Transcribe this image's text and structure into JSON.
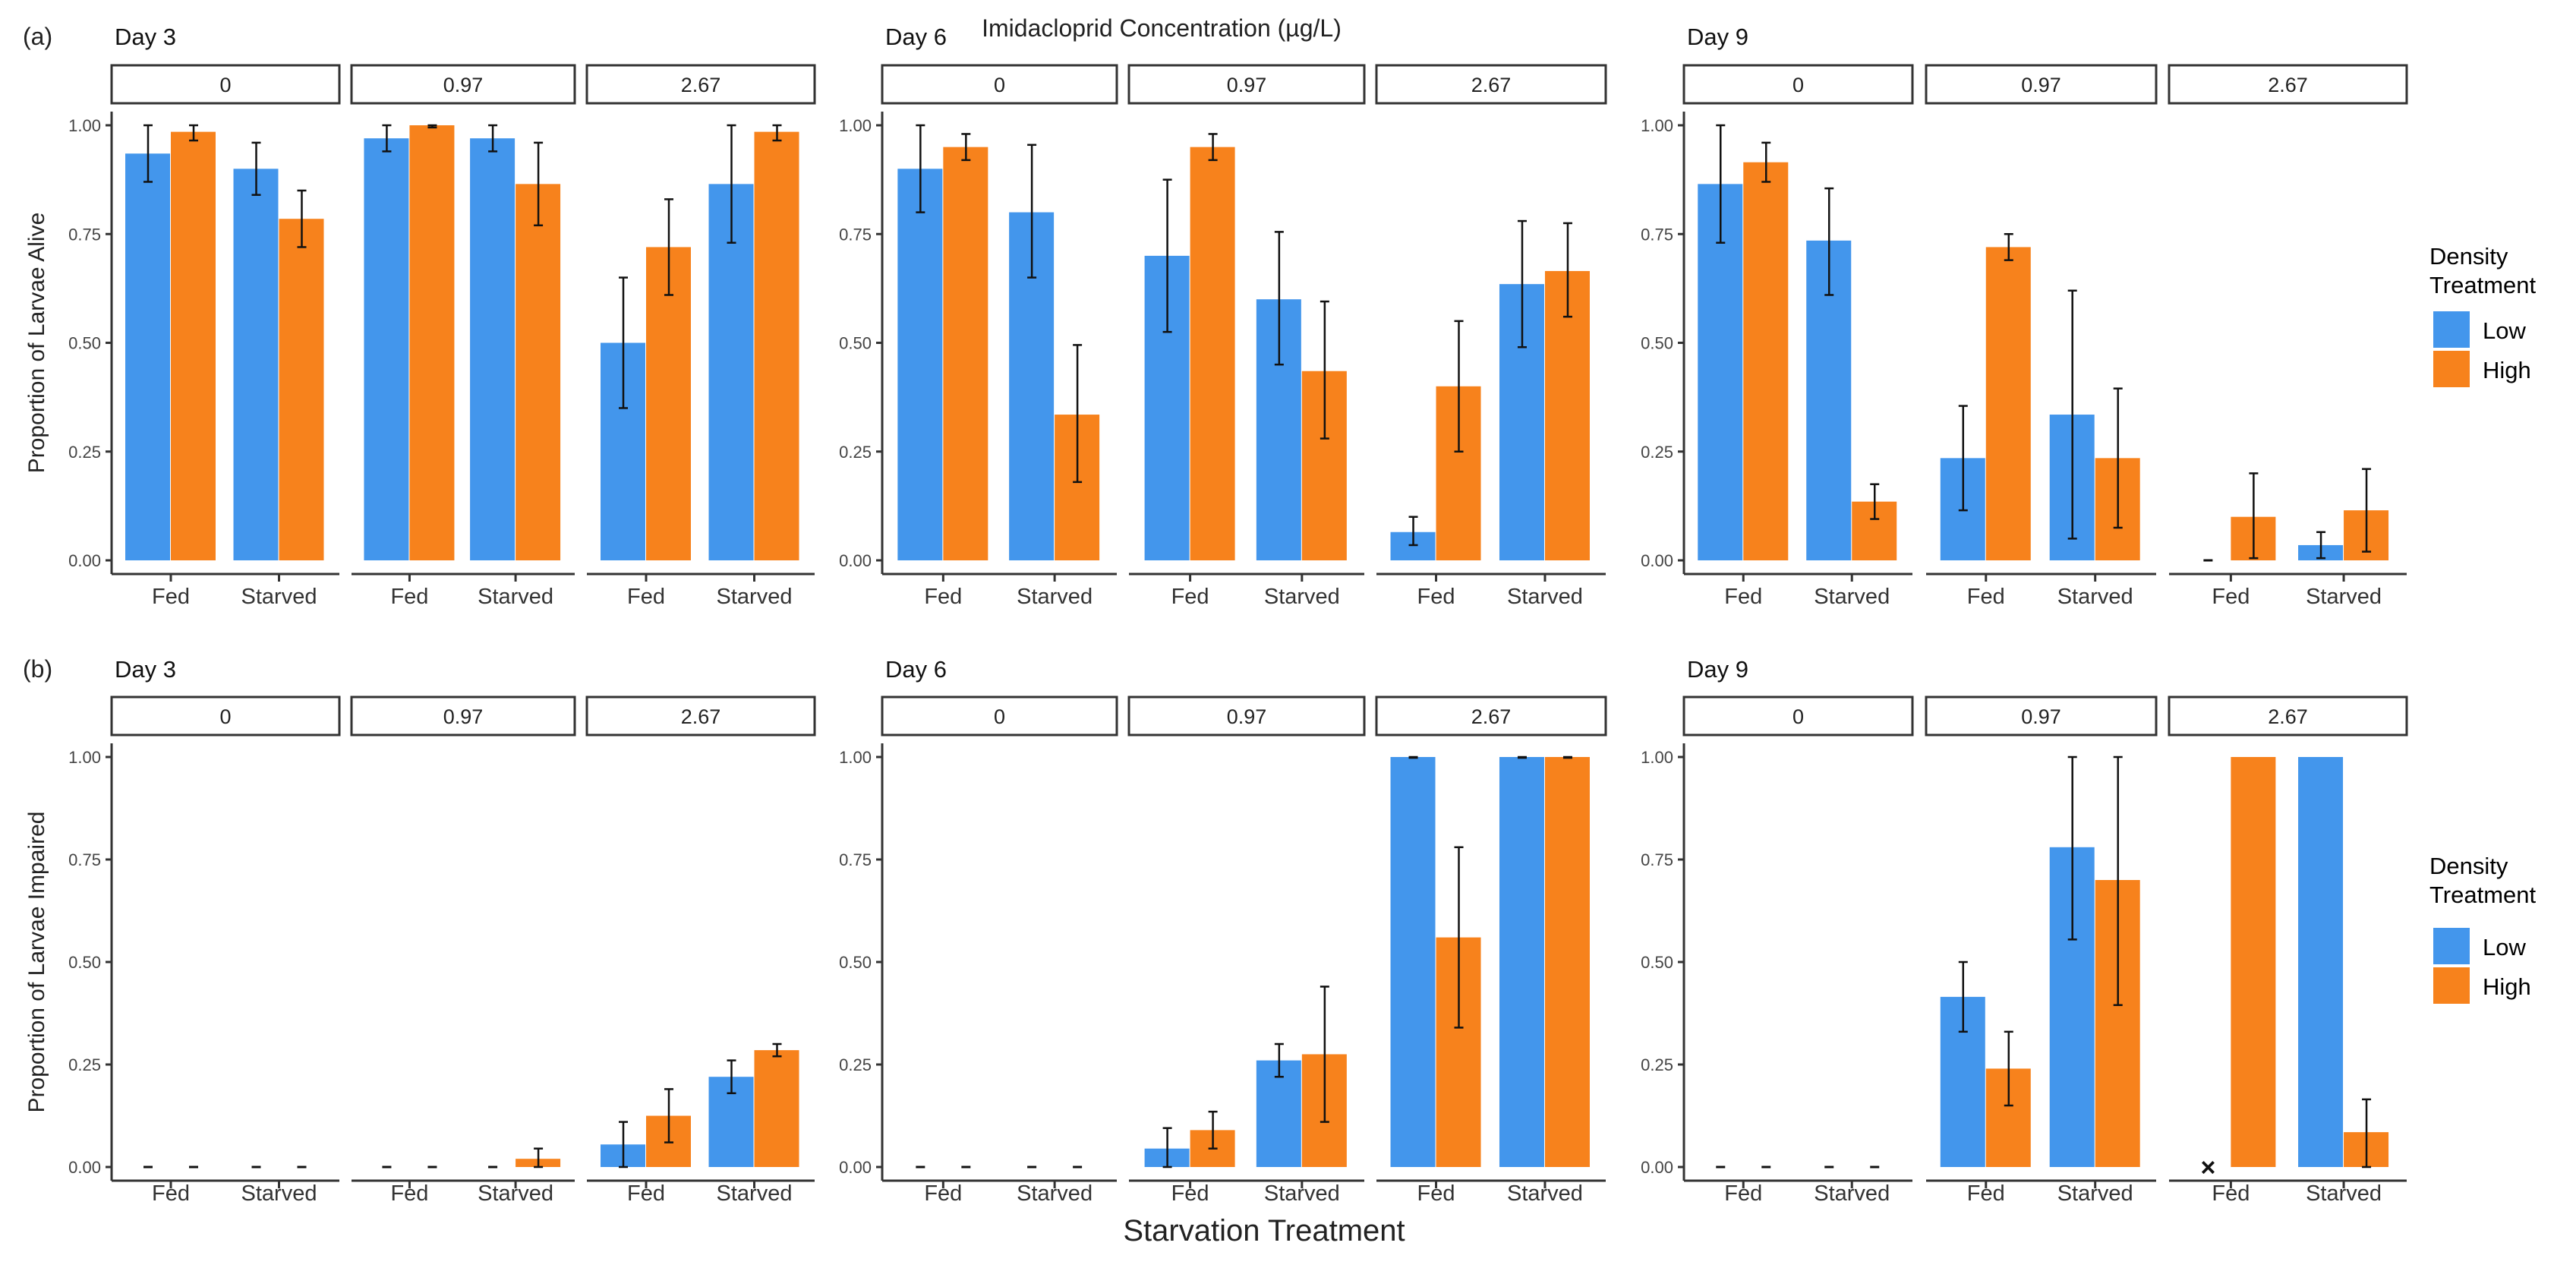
{
  "header": {
    "concentration_title": "Imidacloprid Concentration (µg/L)",
    "x_title": "Starvation Treatment"
  },
  "legend": {
    "title_line1": "Density",
    "title_line2": "Treatment",
    "items": [
      {
        "label": "Low",
        "color": "#4396EC"
      },
      {
        "label": "High",
        "color": "#F7821C"
      }
    ]
  },
  "colors": {
    "low": "#4396EC",
    "high": "#F7821C",
    "error_bar": "#111111",
    "axis": "#333333"
  },
  "no_data_marker": "×",
  "chart_data": [
    {
      "type": "bar",
      "panel_label": "(a)",
      "ylabel": "Proportion of Larvae Alive",
      "ylim": [
        0,
        1
      ],
      "yticks": [
        "0.00",
        "0.25",
        "0.50",
        "0.75",
        "1.00"
      ],
      "categories": [
        "Fed",
        "Starved"
      ],
      "series_names": [
        "Low",
        "High"
      ],
      "days": [
        {
          "title": "Day 3",
          "facets": [
            {
              "strip": "0",
              "values": {
                "Low": [
                  0.935,
                  0.9
                ],
                "High": [
                  0.985,
                  0.785
                ]
              },
              "errors": {
                "Low": [
                  [
                    0.87,
                    1.0
                  ],
                  [
                    0.84,
                    0.96
                  ]
                ],
                "High": [
                  [
                    0.965,
                    1.0
                  ],
                  [
                    0.72,
                    0.85
                  ]
                ]
              }
            },
            {
              "strip": "0.97",
              "values": {
                "Low": [
                  0.97,
                  0.97
                ],
                "High": [
                  1.0,
                  0.865
                ]
              },
              "errors": {
                "Low": [
                  [
                    0.94,
                    1.0
                  ],
                  [
                    0.94,
                    1.0
                  ]
                ],
                "High": [
                  [
                    0.995,
                    1.0
                  ],
                  [
                    0.77,
                    0.96
                  ]
                ]
              }
            },
            {
              "strip": "2.67",
              "values": {
                "Low": [
                  0.5,
                  0.865
                ],
                "High": [
                  0.72,
                  0.985
                ]
              },
              "errors": {
                "Low": [
                  [
                    0.35,
                    0.65
                  ],
                  [
                    0.73,
                    1.0
                  ]
                ],
                "High": [
                  [
                    0.61,
                    0.83
                  ],
                  [
                    0.965,
                    1.0
                  ]
                ]
              }
            }
          ]
        },
        {
          "title": "Day 6",
          "facets": [
            {
              "strip": "0",
              "values": {
                "Low": [
                  0.9,
                  0.8
                ],
                "High": [
                  0.95,
                  0.335
                ]
              },
              "errors": {
                "Low": [
                  [
                    0.8,
                    1.0
                  ],
                  [
                    0.65,
                    0.955
                  ]
                ],
                "High": [
                  [
                    0.92,
                    0.98
                  ],
                  [
                    0.18,
                    0.495
                  ]
                ]
              }
            },
            {
              "strip": "0.97",
              "values": {
                "Low": [
                  0.7,
                  0.6
                ],
                "High": [
                  0.95,
                  0.435
                ]
              },
              "errors": {
                "Low": [
                  [
                    0.525,
                    0.875
                  ],
                  [
                    0.45,
                    0.755
                  ]
                ],
                "High": [
                  [
                    0.92,
                    0.98
                  ],
                  [
                    0.28,
                    0.595
                  ]
                ]
              }
            },
            {
              "strip": "2.67",
              "values": {
                "Low": [
                  0.065,
                  0.635
                ],
                "High": [
                  0.4,
                  0.665
                ]
              },
              "errors": {
                "Low": [
                  [
                    0.035,
                    0.1
                  ],
                  [
                    0.49,
                    0.78
                  ]
                ],
                "High": [
                  [
                    0.25,
                    0.55
                  ],
                  [
                    0.56,
                    0.775
                  ]
                ]
              }
            }
          ]
        },
        {
          "title": "Day 9",
          "facets": [
            {
              "strip": "0",
              "values": {
                "Low": [
                  0.865,
                  0.735
                ],
                "High": [
                  0.915,
                  0.135
                ]
              },
              "errors": {
                "Low": [
                  [
                    0.73,
                    1.0
                  ],
                  [
                    0.61,
                    0.855
                  ]
                ],
                "High": [
                  [
                    0.87,
                    0.96
                  ],
                  [
                    0.095,
                    0.175
                  ]
                ]
              }
            },
            {
              "strip": "0.97",
              "values": {
                "Low": [
                  0.235,
                  0.335
                ],
                "High": [
                  0.72,
                  0.235
                ]
              },
              "errors": {
                "Low": [
                  [
                    0.115,
                    0.355
                  ],
                  [
                    0.05,
                    0.62
                  ]
                ],
                "High": [
                  [
                    0.69,
                    0.75
                  ],
                  [
                    0.075,
                    0.395
                  ]
                ]
              }
            },
            {
              "strip": "2.67",
              "values": {
                "Low": [
                  0.0,
                  0.035
                ],
                "High": [
                  0.1,
                  0.115
                ]
              },
              "errors": {
                "Low": [
                  null,
                  [
                    0.005,
                    0.065
                  ]
                ],
                "High": [
                  [
                    0.005,
                    0.2
                  ],
                  [
                    0.02,
                    0.21
                  ]
                ]
              }
            }
          ]
        }
      ]
    },
    {
      "type": "bar",
      "panel_label": "(b)",
      "ylabel": "Proportion of Larvae Impaired",
      "ylim": [
        0,
        1
      ],
      "yticks": [
        "0.00",
        "0.25",
        "0.50",
        "0.75",
        "1.00"
      ],
      "categories": [
        "Fed",
        "Starved"
      ],
      "series_names": [
        "Low",
        "High"
      ],
      "days": [
        {
          "title": "Day 3",
          "facets": [
            {
              "strip": "0",
              "values": {
                "Low": [
                  0,
                  0
                ],
                "High": [
                  0,
                  0
                ]
              },
              "errors": {
                "Low": [
                  null,
                  null
                ],
                "High": [
                  null,
                  null
                ]
              }
            },
            {
              "strip": "0.97",
              "values": {
                "Low": [
                  0,
                  0
                ],
                "High": [
                  0,
                  0.02
                ]
              },
              "errors": {
                "Low": [
                  null,
                  null
                ],
                "High": [
                  null,
                  [
                    0.0,
                    0.045
                  ]
                ]
              }
            },
            {
              "strip": "2.67",
              "values": {
                "Low": [
                  0.055,
                  0.22
                ],
                "High": [
                  0.125,
                  0.285
                ]
              },
              "errors": {
                "Low": [
                  [
                    0.0,
                    0.11
                  ],
                  [
                    0.18,
                    0.26
                  ]
                ],
                "High": [
                  [
                    0.06,
                    0.19
                  ],
                  [
                    0.27,
                    0.3
                  ]
                ]
              }
            }
          ]
        },
        {
          "title": "Day 6",
          "facets": [
            {
              "strip": "0",
              "values": {
                "Low": [
                  0,
                  0
                ],
                "High": [
                  0,
                  0
                ]
              },
              "errors": {
                "Low": [
                  null,
                  null
                ],
                "High": [
                  null,
                  null
                ]
              }
            },
            {
              "strip": "0.97",
              "values": {
                "Low": [
                  0.045,
                  0.26
                ],
                "High": [
                  0.09,
                  0.275
                ]
              },
              "errors": {
                "Low": [
                  [
                    0.0,
                    0.095
                  ],
                  [
                    0.22,
                    0.3
                  ]
                ],
                "High": [
                  [
                    0.045,
                    0.135
                  ],
                  [
                    0.11,
                    0.44
                  ]
                ]
              }
            },
            {
              "strip": "2.67",
              "values": {
                "Low": [
                  1.0,
                  1.0
                ],
                "High": [
                  0.56,
                  1.0
                ]
              },
              "errors": {
                "Low": [
                  [
                    0.998,
                    1.0
                  ],
                  [
                    0.998,
                    1.0
                  ]
                ],
                "High": [
                  [
                    0.34,
                    0.78
                  ],
                  [
                    0.998,
                    1.0
                  ]
                ]
              }
            }
          ]
        },
        {
          "title": "Day 9",
          "facets": [
            {
              "strip": "0",
              "values": {
                "Low": [
                  0,
                  0
                ],
                "High": [
                  0,
                  0
                ]
              },
              "errors": {
                "Low": [
                  null,
                  null
                ],
                "High": [
                  null,
                  null
                ]
              }
            },
            {
              "strip": "0.97",
              "values": {
                "Low": [
                  0.415,
                  0.78
                ],
                "High": [
                  0.24,
                  0.7
                ]
              },
              "errors": {
                "Low": [
                  [
                    0.33,
                    0.5
                  ],
                  [
                    0.555,
                    1.0
                  ]
                ],
                "High": [
                  [
                    0.15,
                    0.33
                  ],
                  [
                    0.395,
                    1.0
                  ]
                ]
              }
            },
            {
              "strip": "2.67",
              "values": {
                "Low": [
                  null,
                  1.0
                ],
                "High": [
                  1.0,
                  0.085
                ]
              },
              "errors": {
                "Low": [
                  null,
                  null
                ],
                "High": [
                  null,
                  [
                    0.0,
                    0.165
                  ]
                ]
              }
            }
          ]
        }
      ]
    }
  ]
}
